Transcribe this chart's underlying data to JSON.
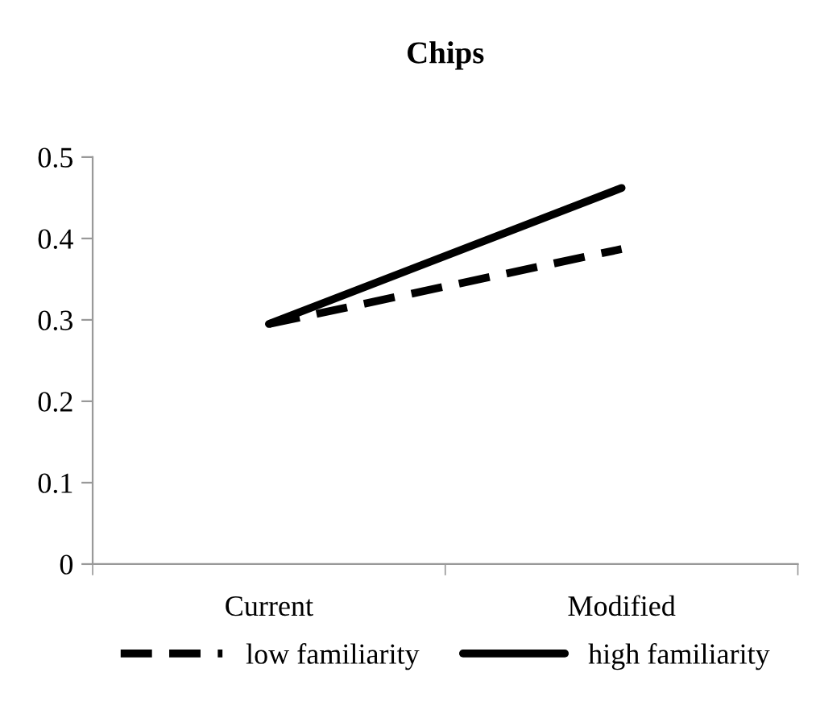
{
  "chart_data": {
    "type": "line",
    "title": "Chips",
    "categories": [
      "Current",
      "Modified"
    ],
    "series": [
      {
        "name": "low familiarity",
        "color": "#000000",
        "line_style": "dashed",
        "values": [
          0.295,
          0.387
        ]
      },
      {
        "name": "high familiarity",
        "color": "#000000",
        "line_style": "solid",
        "values": [
          0.295,
          0.462
        ]
      }
    ],
    "ylim": [
      0,
      0.5
    ],
    "yticks": [
      0,
      0.1,
      0.2,
      0.3,
      0.4,
      0.5
    ],
    "grid": false,
    "legend": "bottom",
    "marker": "none"
  }
}
